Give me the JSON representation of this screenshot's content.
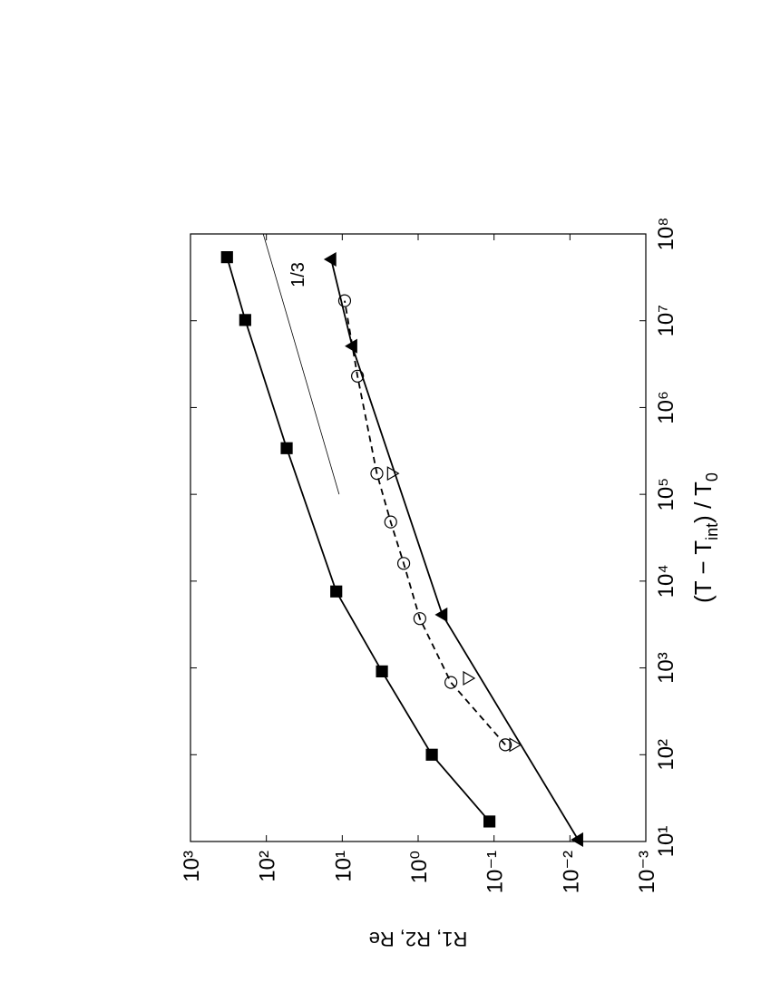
{
  "chart_data": {
    "type": "line",
    "x_label_parts": [
      "(T − T",
      "int",
      ") / T",
      "0"
    ],
    "y_label": "R1, R2, Re",
    "xscale": "log",
    "yscale": "log",
    "xlim": [
      10,
      100000000
    ],
    "ylim": [
      0.001,
      1000
    ],
    "xticks": [
      {
        "value": 10,
        "label": "10¹"
      },
      {
        "value": 100,
        "label": "10²"
      },
      {
        "value": 1000,
        "label": "10³"
      },
      {
        "value": 10000,
        "label": "10⁴"
      },
      {
        "value": 100000,
        "label": "10⁵"
      },
      {
        "value": 1000000,
        "label": "10⁶"
      },
      {
        "value": 10000000,
        "label": "10⁷"
      },
      {
        "value": 100000000,
        "label": "10⁸"
      }
    ],
    "yticks": [
      {
        "value": 0.001,
        "label": "10⁻³"
      },
      {
        "value": 0.01,
        "label": "10⁻²"
      },
      {
        "value": 0.1,
        "label": "10⁻¹"
      },
      {
        "value": 1,
        "label": "10⁰"
      },
      {
        "value": 10,
        "label": "10¹"
      },
      {
        "value": 100,
        "label": "10²"
      },
      {
        "value": 1000,
        "label": "10³"
      }
    ],
    "rotation": -90,
    "series": [
      {
        "marker": "square",
        "filled": true,
        "line": "solid",
        "color": "#000000",
        "x": [
          17,
          100,
          912,
          7600,
          340000,
          10200000,
          54000000
        ],
        "values": [
          0.115,
          0.66,
          3.0,
          12,
          54,
          190,
          330
        ]
      },
      {
        "marker": "triangle-up",
        "filled": true,
        "line": "solid",
        "color": "#000000",
        "x": [
          10.5,
          4100,
          5100000,
          51000000
        ],
        "values": [
          0.0078,
          0.48,
          7.4,
          14
        ]
      },
      {
        "marker": "triangle-down",
        "filled": false,
        "line": "none",
        "color": "#000000",
        "x": [
          130,
          760,
          174000
        ],
        "values": [
          0.054,
          0.22,
          2.2
        ]
      },
      {
        "marker": "circle",
        "filled": false,
        "line": "dashed",
        "color": "#000000",
        "x": [
          130,
          680,
          3700,
          16000,
          48000,
          174000,
          2300000,
          17000000
        ],
        "values": [
          0.071,
          0.37,
          0.95,
          1.55,
          2.3,
          3.5,
          6.3,
          9.3
        ]
      }
    ],
    "reference_line": {
      "label": "1/3",
      "x": [
        100000,
        100000000
      ],
      "values": [
        11,
        110
      ]
    }
  }
}
